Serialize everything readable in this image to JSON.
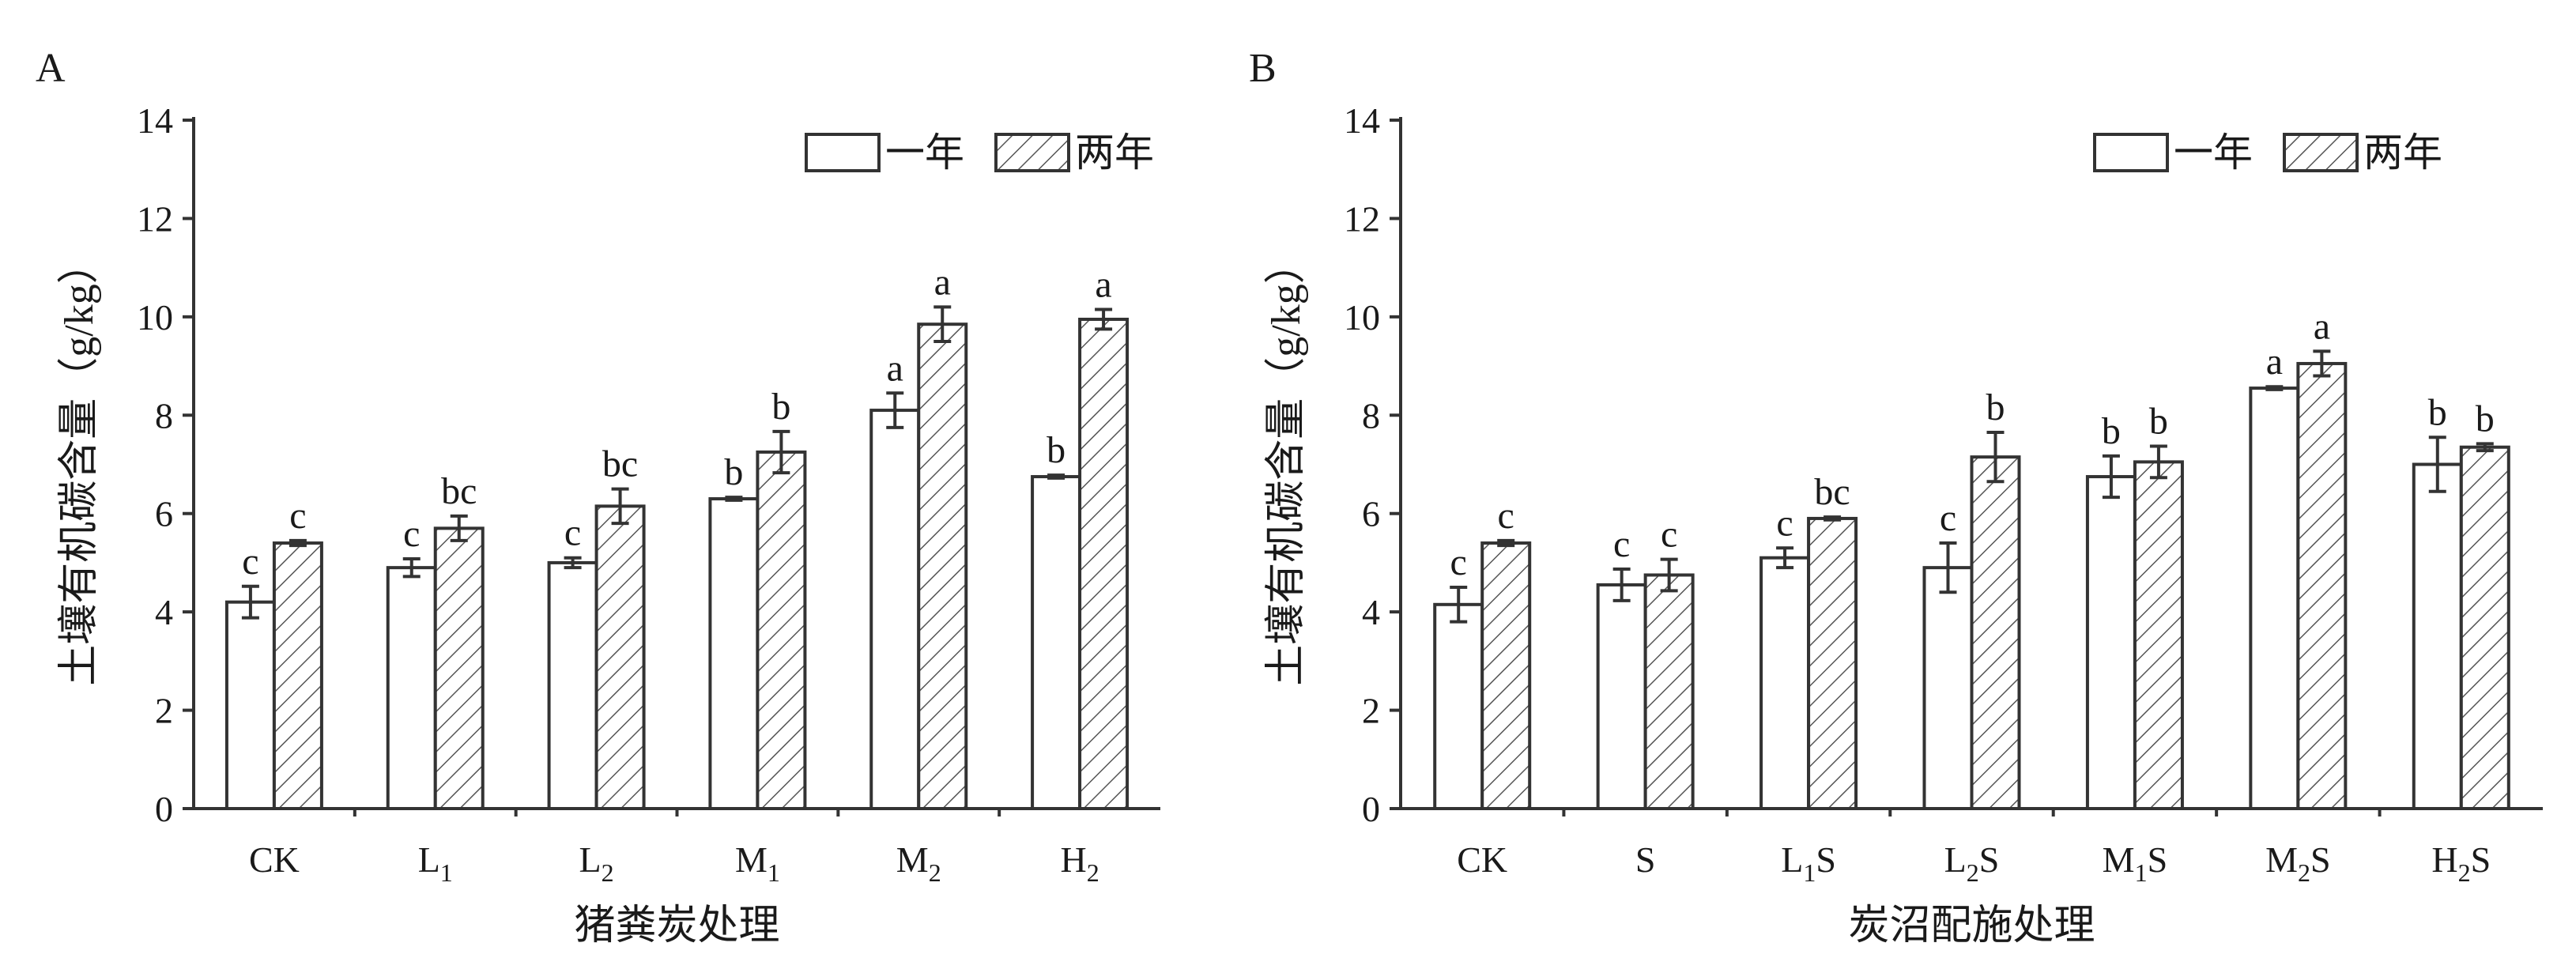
{
  "chart_data": [
    {
      "type": "bar",
      "panel_label": "A",
      "title": "",
      "xlabel": "猪粪炭处理",
      "ylabel": "土壤有机碳含量（g/kg）",
      "ylim": [
        0,
        14
      ],
      "yticks": [
        "0",
        "2",
        "4",
        "6",
        "8",
        "10",
        "12",
        "14"
      ],
      "categories": [
        {
          "base": "CK",
          "sub": "",
          "suffix": ""
        },
        {
          "base": "L",
          "sub": "1",
          "suffix": ""
        },
        {
          "base": "L",
          "sub": "2",
          "suffix": ""
        },
        {
          "base": "M",
          "sub": "1",
          "suffix": ""
        },
        {
          "base": "M",
          "sub": "2",
          "suffix": ""
        },
        {
          "base": "H",
          "sub": "2",
          "suffix": ""
        }
      ],
      "legend": {
        "position": "top-right",
        "entries": [
          "一年",
          "两年"
        ]
      },
      "series": [
        {
          "name": "一年",
          "values": [
            4.2,
            4.9,
            5.0,
            6.3,
            8.1,
            6.75
          ],
          "errors": [
            0.32,
            0.18,
            0.1,
            0.03,
            0.35,
            0.03
          ],
          "letters": [
            "c",
            "c",
            "c",
            "b",
            "a",
            "b"
          ]
        },
        {
          "name": "两年",
          "values": [
            5.4,
            5.7,
            6.15,
            7.25,
            9.85,
            9.95
          ],
          "errors": [
            0.05,
            0.25,
            0.35,
            0.42,
            0.35,
            0.2
          ],
          "letters": [
            "c",
            "bc",
            "bc",
            "b",
            "a",
            "a"
          ]
        }
      ]
    },
    {
      "type": "bar",
      "panel_label": "B",
      "title": "",
      "xlabel": "炭沼配施处理",
      "ylabel": "土壤有机碳含量（g/kg）",
      "ylim": [
        0,
        14
      ],
      "yticks": [
        "0",
        "2",
        "4",
        "6",
        "8",
        "10",
        "12",
        "14"
      ],
      "categories": [
        {
          "base": "CK",
          "sub": "",
          "suffix": ""
        },
        {
          "base": "S",
          "sub": "",
          "suffix": ""
        },
        {
          "base": "L",
          "sub": "1",
          "suffix": "S"
        },
        {
          "base": "L",
          "sub": "2",
          "suffix": "S"
        },
        {
          "base": "M",
          "sub": "1",
          "suffix": "S"
        },
        {
          "base": "M",
          "sub": "2",
          "suffix": "S"
        },
        {
          "base": "H",
          "sub": "2",
          "suffix": "S"
        }
      ],
      "legend": {
        "position": "top-right",
        "entries": [
          "一年",
          "两年"
        ]
      },
      "series": [
        {
          "name": "一年",
          "values": [
            4.15,
            4.55,
            5.1,
            4.9,
            6.75,
            8.55,
            7.0
          ],
          "errors": [
            0.35,
            0.32,
            0.2,
            0.5,
            0.42,
            0.03,
            0.55
          ],
          "letters": [
            "c",
            "c",
            "c",
            "c",
            "b",
            "a",
            "b"
          ]
        },
        {
          "name": "两年",
          "values": [
            5.4,
            4.75,
            5.9,
            7.15,
            7.05,
            9.05,
            7.35
          ],
          "errors": [
            0.05,
            0.32,
            0.03,
            0.5,
            0.32,
            0.25,
            0.07
          ],
          "letters": [
            "c",
            "c",
            "bc",
            "b",
            "b",
            "a",
            "b"
          ]
        }
      ]
    }
  ]
}
